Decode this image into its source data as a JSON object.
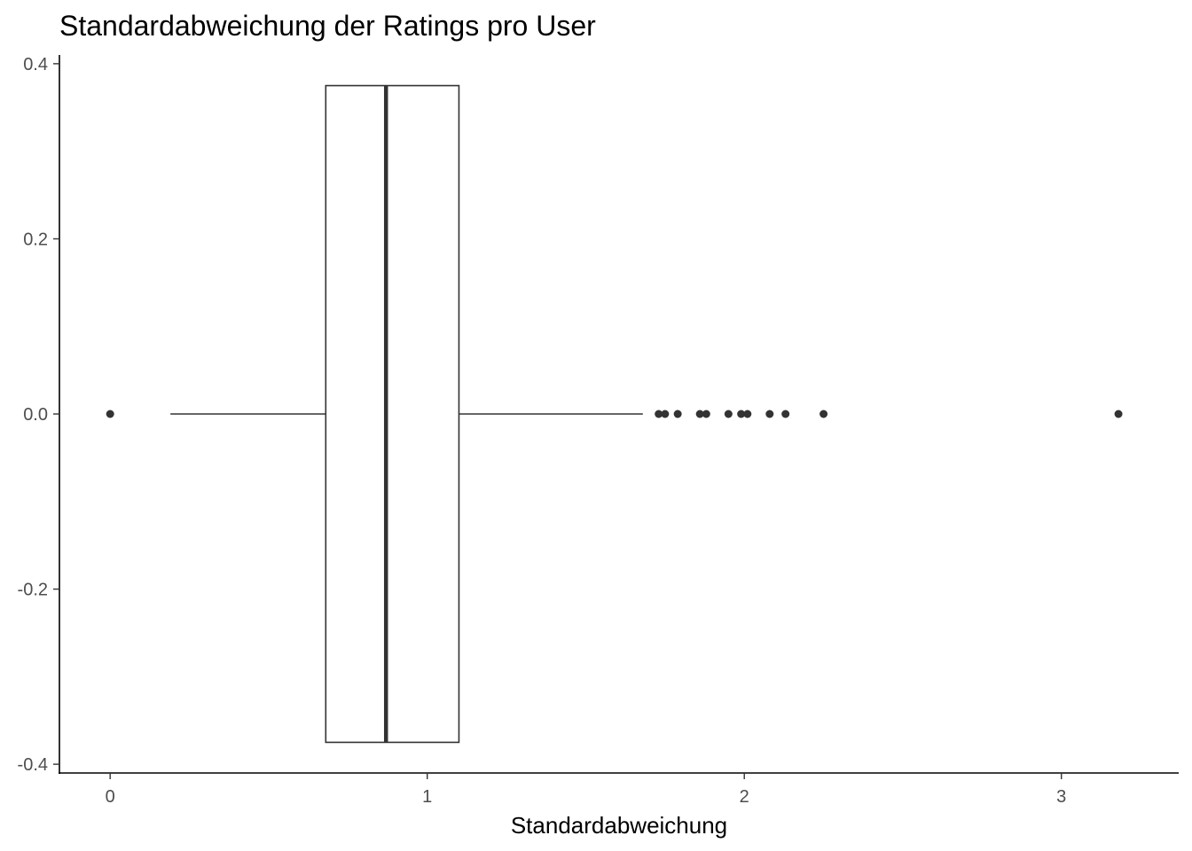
{
  "chart_data": {
    "type": "boxplot",
    "title": "Standardabweichung der Ratings pro User",
    "xlabel": "Standardabweichung",
    "ylabel": "",
    "xlim": [
      -0.16,
      3.37
    ],
    "ylim": [
      -0.41,
      0.41
    ],
    "x_ticks": [
      0,
      1,
      2,
      3
    ],
    "x_tick_labels": [
      "0",
      "1",
      "2",
      "3"
    ],
    "y_ticks": [
      0.4,
      0.2,
      0.0,
      -0.2,
      -0.4
    ],
    "y_tick_labels": [
      "0.4",
      "0.2",
      "0.0",
      "-0.2",
      "-0.4"
    ],
    "box": {
      "lower_whisker": 0.19,
      "q1": 0.68,
      "median": 0.87,
      "q3": 1.1,
      "upper_whisker": 1.68,
      "y_center": 0.0,
      "half_width": 0.375
    },
    "outliers": [
      0.0,
      1.73,
      1.75,
      1.79,
      1.86,
      1.88,
      1.95,
      1.99,
      2.01,
      2.08,
      2.13,
      2.25,
      3.18
    ],
    "grid": false,
    "legend": "none",
    "colors": {
      "line": "#333333",
      "axis": "#000000",
      "fill": "#ffffff"
    }
  }
}
